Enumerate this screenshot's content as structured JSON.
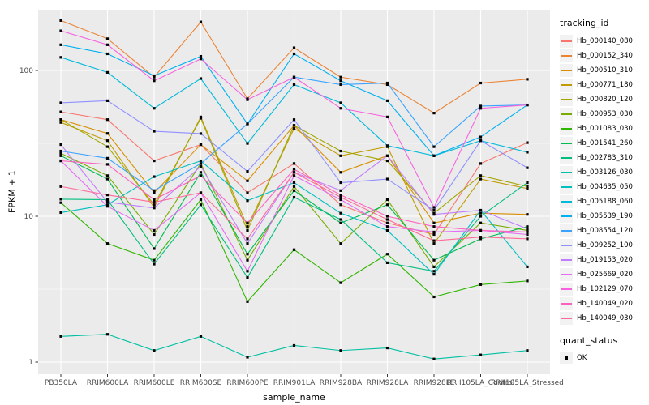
{
  "panel": {
    "bg": "#EBEBEB",
    "grid_major": "#FFFFFF",
    "grid_minor": "#FFFFFF",
    "tick_color": "#333333",
    "tick_label_color": "#4D4D4D"
  },
  "axes": {
    "x": {
      "label": "sample_name"
    },
    "y": {
      "label": "FPKM + 1",
      "ticks": [
        "1",
        "10",
        "100"
      ]
    }
  },
  "legend": {
    "tracking_title": "tracking_id",
    "quant_title": "quant_status",
    "quant_items": [
      {
        "label": "OK",
        "marker": "black-square"
      }
    ]
  },
  "chart_data": {
    "type": "line",
    "title": "",
    "xlabel": "sample_name",
    "ylabel": "FPKM + 1",
    "yscale": "log10",
    "ylim": [
      1,
      260
    ],
    "grid": true,
    "legend_position": "right",
    "marker": {
      "shape": "square",
      "color": "#000000",
      "meaning": "quant_status OK"
    },
    "categories": [
      "PB350LA",
      "RRIM600LA",
      "RRIM600LE",
      "RRIM600SE",
      "RRIM600PE",
      "RRIM901LA",
      "RRIM928BA",
      "RRIM928LA",
      "RRIM928LE",
      "RRII105LA_Control",
      "RRII105LA_Stressed"
    ],
    "series": [
      {
        "name": "Hb_000140_080",
        "color": "#F8766D",
        "values": [
          52,
          46,
          24,
          31,
          14.5,
          23,
          12,
          9,
          7.5,
          23,
          32
        ]
      },
      {
        "name": "Hb_000152_340",
        "color": "#EB8335",
        "values": [
          220,
          165,
          90,
          215,
          64,
          143,
          90,
          80,
          51,
          82,
          87
        ]
      },
      {
        "name": "Hb_000510_310",
        "color": "#D99000",
        "values": [
          46,
          37,
          14.5,
          31,
          17.5,
          42,
          20,
          26,
          9,
          10.5,
          10.3
        ]
      },
      {
        "name": "Hb_000771_180",
        "color": "#C19C00",
        "values": [
          44,
          33,
          11.5,
          48,
          8.5,
          40,
          26,
          30,
          6.5,
          18,
          15.5
        ]
      },
      {
        "name": "Hb_000820_120",
        "color": "#A2A600",
        "values": [
          46,
          30,
          12,
          47,
          8,
          42,
          28,
          24,
          10.5,
          19,
          16
        ]
      },
      {
        "name": "Hb_000953_030",
        "color": "#78AD00",
        "values": [
          27,
          19,
          7.5,
          23,
          5,
          16,
          6.5,
          13,
          4.5,
          9,
          8
        ]
      },
      {
        "name": "Hb_001083_030",
        "color": "#2FB600",
        "values": [
          12.4,
          6.5,
          5,
          13,
          2.6,
          5.9,
          3.5,
          5.5,
          2.8,
          3.4,
          3.6
        ]
      },
      {
        "name": "Hb_001541_260",
        "color": "#00BB51",
        "values": [
          26,
          18,
          6,
          20,
          5.5,
          15,
          9,
          12,
          5,
          7,
          8.5
        ]
      },
      {
        "name": "Hb_002783_310",
        "color": "#00BE7E",
        "values": [
          13.1,
          13,
          4.7,
          12,
          3.8,
          13.5,
          9.5,
          4.8,
          4.2,
          10,
          17
        ]
      },
      {
        "name": "Hb_003126_030",
        "color": "#00C0A2",
        "values": [
          1.5,
          1.55,
          1.2,
          1.5,
          1.08,
          1.3,
          1.2,
          1.25,
          1.05,
          1.12,
          1.2
        ]
      },
      {
        "name": "Hb_004635_050",
        "color": "#00BFC0",
        "values": [
          10.6,
          12,
          18.7,
          24,
          12.8,
          17,
          10.5,
          8,
          4,
          11,
          4.5
        ]
      },
      {
        "name": "Hb_005188_060",
        "color": "#00BADA",
        "values": [
          123,
          97,
          55,
          88,
          31.6,
          80,
          60,
          30.5,
          26,
          33,
          27.5
        ]
      },
      {
        "name": "Hb_005539_190",
        "color": "#00B1F1",
        "values": [
          150,
          130,
          92,
          125,
          43,
          130,
          85,
          62,
          26,
          35,
          58
        ]
      },
      {
        "name": "Hb_008554_120",
        "color": "#3BA3FF",
        "values": [
          28,
          25,
          15,
          23,
          43,
          90,
          80,
          82,
          30,
          57,
          58
        ]
      },
      {
        "name": "Hb_009252_100",
        "color": "#9090FF",
        "values": [
          60,
          62,
          38.3,
          36.9,
          20.3,
          46,
          17,
          18,
          11,
          33,
          21.5
        ]
      },
      {
        "name": "Hb_019153_020",
        "color": "#C17DFF",
        "values": [
          31,
          12.5,
          11.4,
          22,
          6.5,
          20,
          15,
          26,
          10.3,
          11,
          8.2
        ]
      },
      {
        "name": "Hb_025669_020",
        "color": "#E46DF5",
        "values": [
          24,
          11.7,
          8,
          14.5,
          4.2,
          19,
          13,
          8.5,
          7.8,
          8,
          7.5
        ]
      },
      {
        "name": "Hb_102129_070",
        "color": "#F763DF",
        "values": [
          187,
          150,
          85,
          120,
          63,
          90,
          55,
          48,
          11.5,
          55,
          58
        ]
      },
      {
        "name": "Hb_140049_020",
        "color": "#FF62BF",
        "values": [
          24,
          22.7,
          13,
          19,
          9,
          21,
          14,
          10,
          8.5,
          8,
          7.8
        ]
      },
      {
        "name": "Hb_140049_030",
        "color": "#FF6A98",
        "values": [
          16,
          14,
          12.5,
          14.5,
          7,
          20,
          13.5,
          9.5,
          6.8,
          7.2,
          7
        ]
      }
    ]
  }
}
